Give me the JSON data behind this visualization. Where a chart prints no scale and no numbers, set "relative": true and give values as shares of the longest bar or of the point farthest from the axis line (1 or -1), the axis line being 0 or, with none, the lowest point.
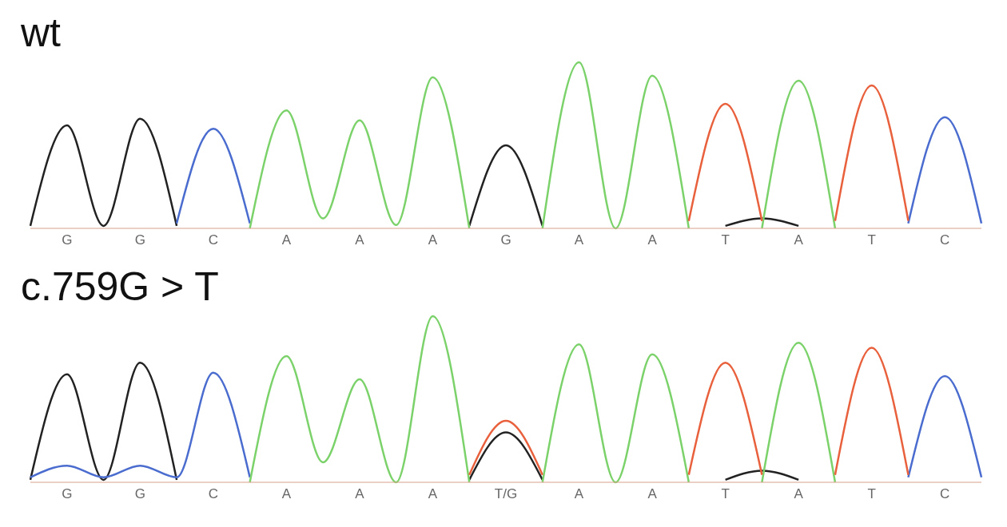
{
  "chart_data": [
    {
      "type": "line",
      "title": "wt",
      "relative": true,
      "legend": false,
      "categories": [
        null,
        "G",
        null,
        "G",
        null,
        "C",
        null,
        "A",
        null,
        "A",
        null,
        "A",
        null,
        "G",
        null,
        "A",
        null,
        "A",
        null,
        "T",
        null,
        "A",
        null,
        "T",
        null,
        "C",
        null
      ],
      "series": [
        {
          "color": "#222222",
          "values": [
            0.015,
            0.62,
            0.015,
            0.66,
            0.015,
            null,
            null,
            null,
            null,
            null,
            null,
            null,
            0.015,
            0.5,
            0.015,
            null,
            null,
            null,
            null,
            0.015,
            0.06,
            0.015,
            null,
            null,
            null,
            null,
            null
          ]
        },
        {
          "color": "#4a6ccf",
          "values": [
            null,
            null,
            null,
            null,
            0.03,
            0.6,
            0.03,
            null,
            null,
            null,
            null,
            null,
            null,
            null,
            null,
            null,
            null,
            null,
            null,
            null,
            null,
            null,
            null,
            null,
            0.03,
            0.67,
            0.03
          ]
        },
        {
          "color": "#7cd26a",
          "values": [
            null,
            null,
            null,
            null,
            null,
            null,
            0,
            0.71,
            0.06,
            0.65,
            0.02,
            0.91,
            0,
            null,
            0,
            1,
            0,
            0.92,
            0,
            null,
            0,
            0.89,
            0,
            null,
            null,
            null,
            null
          ]
        },
        {
          "color": "#e8603c",
          "values": [
            null,
            null,
            null,
            null,
            null,
            null,
            null,
            null,
            null,
            null,
            null,
            null,
            null,
            null,
            null,
            null,
            null,
            null,
            0.045,
            0.75,
            0.045,
            null,
            0.045,
            0.86,
            0.045,
            null,
            null
          ]
        }
      ]
    },
    {
      "type": "line",
      "title": "c.759G > T",
      "relative": true,
      "legend": false,
      "categories": [
        null,
        "G",
        null,
        "G",
        null,
        "C",
        null,
        "A",
        null,
        "A",
        null,
        "A",
        null,
        "T/G",
        null,
        "A",
        null,
        "A",
        null,
        "T",
        null,
        "A",
        null,
        "T",
        null,
        "C",
        null
      ],
      "series": [
        {
          "color": "#222222",
          "values": [
            0.015,
            0.65,
            0.015,
            0.72,
            0.015,
            null,
            null,
            null,
            null,
            null,
            null,
            null,
            0.015,
            0.3,
            0.015,
            null,
            null,
            null,
            null,
            0.015,
            0.07,
            0.015,
            null,
            null,
            null,
            null,
            null
          ]
        },
        {
          "color": "#4a6ccf",
          "values": [
            0.03,
            0.1,
            0.03,
            0.1,
            0.03,
            0.66,
            0.03,
            null,
            null,
            null,
            null,
            null,
            null,
            null,
            null,
            null,
            null,
            null,
            null,
            null,
            null,
            null,
            null,
            null,
            0.03,
            0.64,
            0.03
          ]
        },
        {
          "color": "#7cd26a",
          "values": [
            null,
            null,
            null,
            null,
            null,
            null,
            0,
            0.76,
            0.12,
            0.62,
            0,
            1,
            0,
            null,
            0,
            0.83,
            0,
            0.77,
            0,
            null,
            0,
            0.84,
            0,
            null,
            null,
            null,
            null
          ]
        },
        {
          "color": "#e8603c",
          "values": [
            null,
            null,
            null,
            null,
            null,
            null,
            null,
            null,
            null,
            null,
            null,
            null,
            0.045,
            0.37,
            0.045,
            null,
            null,
            null,
            0.045,
            0.72,
            0.045,
            null,
            0.045,
            0.81,
            0.045,
            null,
            null
          ]
        }
      ]
    }
  ]
}
